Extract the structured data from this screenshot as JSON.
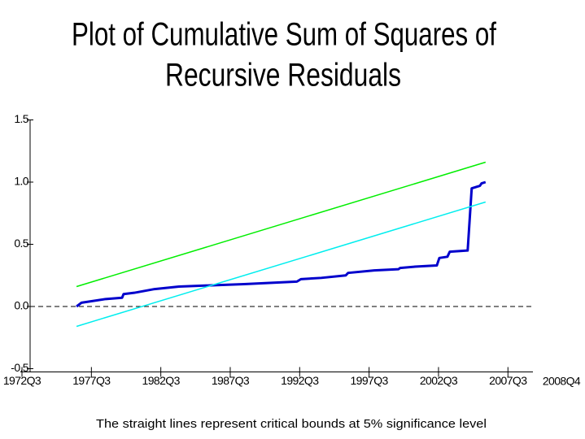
{
  "chart_data": {
    "type": "line",
    "title_lines": [
      "Plot of Cumulative Sum of Squares of",
      "Recursive Residuals"
    ],
    "footnote": "The straight lines represent critical bounds at 5% significance level",
    "xlim": [
      1972.5,
      2009.3
    ],
    "xticks": [
      {
        "value": 1972.5,
        "label": "1972Q3"
      },
      {
        "value": 1977.5,
        "label": "1977Q3"
      },
      {
        "value": 1982.5,
        "label": "1982Q3"
      },
      {
        "value": 1987.5,
        "label": "1987Q3"
      },
      {
        "value": 1992.5,
        "label": "1992Q3"
      },
      {
        "value": 1997.5,
        "label": "1997Q3"
      },
      {
        "value": 2002.5,
        "label": "2002Q3"
      },
      {
        "value": 2007.5,
        "label": "2007Q3"
      }
    ],
    "x_end_label": "2008Q4",
    "ylim": [
      -0.5,
      1.5
    ],
    "yticks": [
      -0.5,
      {
        "value": 0,
        "label": "0.0"
      },
      0.5,
      {
        "value": 1,
        "label": "1.0"
      },
      1.5
    ],
    "zero_line": true,
    "series": [
      {
        "color": "#0000cc",
        "width": 3,
        "x": [
          1976.43,
          1976.78,
          1978.53,
          1979.71,
          1979.82,
          1980.58,
          1982.05,
          1983.81,
          1986.15,
          1988.49,
          1992.3,
          1992.59,
          1994.06,
          1995.82,
          1995.99,
          1997.87,
          1999.62,
          1999.74,
          2000.8,
          2002.38,
          2002.56,
          2003.14,
          2003.31,
          2004.6,
          2004.89,
          2005.48,
          2005.6,
          2005.89
        ],
        "values": [
          0.0,
          0.03,
          0.06,
          0.07,
          0.1,
          0.11,
          0.14,
          0.16,
          0.17,
          0.18,
          0.2,
          0.22,
          0.23,
          0.25,
          0.27,
          0.29,
          0.3,
          0.31,
          0.32,
          0.33,
          0.39,
          0.4,
          0.44,
          0.45,
          0.95,
          0.97,
          0.99,
          1.0
        ]
      },
      {
        "color": "#00ee00",
        "width": 1.5,
        "x": [
          1976.43,
          2005.89
        ],
        "values": [
          0.16,
          1.16
        ]
      },
      {
        "color": "#00eeee",
        "width": 1.5,
        "x": [
          1976.43,
          2005.89
        ],
        "values": [
          -0.16,
          0.84
        ]
      }
    ]
  }
}
